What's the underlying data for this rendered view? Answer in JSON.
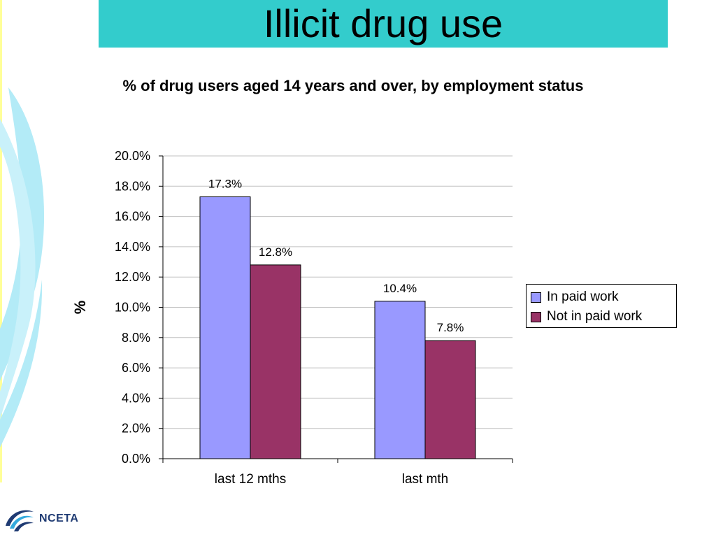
{
  "slide": {
    "title": "Illicit drug use",
    "subtitle": "% of drug users aged 14 years and over, by employment status",
    "logo_text": "NCETA"
  },
  "colors": {
    "banner": "#33cccc",
    "in_paid_work": "#9999ff",
    "not_in_paid_work": "#993366",
    "decoration": "#b3ebf7"
  },
  "chart_data": {
    "type": "bar",
    "categories": [
      "last 12 mths",
      "last mth"
    ],
    "series": [
      {
        "name": "In paid work",
        "values": [
          17.3,
          10.4
        ],
        "labels": [
          "17.3%",
          "10.4%"
        ],
        "color": "#9999ff"
      },
      {
        "name": "Not in paid work",
        "values": [
          12.8,
          7.8
        ],
        "labels": [
          "12.8%",
          "7.8%"
        ],
        "color": "#993366"
      }
    ],
    "title": "% of drug users aged 14 years and over, by employment status",
    "xlabel": "",
    "ylabel": "%",
    "ylim": [
      0,
      20
    ],
    "yticks": [
      "0.0%",
      "2.0%",
      "4.0%",
      "6.0%",
      "8.0%",
      "10.0%",
      "12.0%",
      "14.0%",
      "16.0%",
      "18.0%",
      "20.0%"
    ],
    "grid": true,
    "legend": "right"
  }
}
